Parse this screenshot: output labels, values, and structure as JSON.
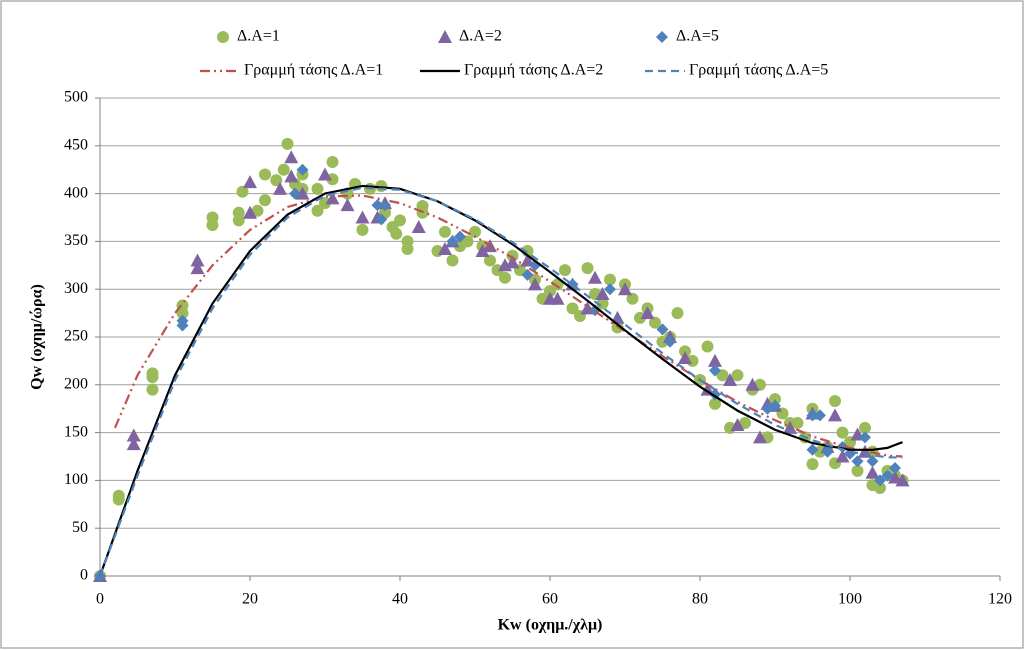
{
  "chart_data": {
    "type": "scatter",
    "x_label": "Kw (οχημ./χλμ)",
    "y_label": "Qw (οχημ/ώρα)",
    "xlim": [
      0,
      120
    ],
    "xticks": [
      0,
      20,
      40,
      60,
      80,
      100,
      120
    ],
    "ylim": [
      0,
      500
    ],
    "yticks": [
      0,
      50,
      100,
      150,
      200,
      250,
      300,
      350,
      400,
      450,
      500
    ],
    "grid": "horizontal",
    "legend": "top",
    "series": [
      {
        "name": "Δ.Α=1",
        "color": "#9bbb59",
        "marker": "circle",
        "x": [
          0,
          2.5,
          2.5,
          7,
          7,
          7,
          11,
          11,
          15,
          15,
          18.5,
          18.5,
          19,
          21,
          22,
          22,
          23.5,
          24.5,
          25,
          26,
          27,
          27,
          29,
          29,
          30,
          31,
          31,
          33,
          34,
          35,
          36,
          37.5,
          38,
          39,
          39.5,
          40,
          41,
          41,
          43,
          43,
          45,
          46,
          47,
          48,
          49,
          50,
          51,
          52,
          53,
          54,
          55,
          56,
          57,
          58,
          59,
          60,
          61,
          62,
          63,
          64,
          65,
          66,
          67,
          68,
          69,
          70,
          71,
          72,
          73,
          74,
          75,
          76,
          77,
          78,
          79,
          80,
          81,
          82,
          83,
          84,
          85,
          86,
          87,
          88,
          89,
          90,
          91,
          92,
          93,
          94,
          95,
          95,
          96,
          97,
          98,
          98,
          99,
          100,
          101,
          102,
          103,
          103,
          104,
          105,
          106,
          107
        ],
        "values": [
          0,
          80,
          84,
          195,
          212,
          208,
          275,
          283,
          367,
          375,
          372,
          380,
          402,
          382,
          393,
          420,
          414,
          425,
          452,
          410,
          420,
          405,
          382,
          405,
          390,
          415,
          433,
          400,
          410,
          362,
          405,
          408,
          380,
          365,
          358,
          372,
          342,
          350,
          380,
          387,
          340,
          360,
          330,
          345,
          350,
          360,
          345,
          330,
          320,
          312,
          335,
          320,
          340,
          310,
          290,
          298,
          305,
          320,
          280,
          272,
          322,
          295,
          285,
          310,
          260,
          305,
          290,
          270,
          280,
          265,
          245,
          250,
          275,
          235,
          225,
          205,
          240,
          180,
          210,
          155,
          210,
          160,
          195,
          200,
          145,
          185,
          170,
          160,
          160,
          145,
          117,
          175,
          130,
          135,
          183,
          118,
          150,
          140,
          110,
          155,
          130,
          95,
          92,
          110,
          105,
          100
        ]
      },
      {
        "name": "Δ.Α=2",
        "color": "#8064a2",
        "marker": "triangle",
        "x": [
          0,
          4.5,
          4.5,
          13,
          13,
          20,
          20,
          24,
          25.5,
          25.5,
          27,
          30,
          31,
          33,
          35,
          37,
          38,
          42.5,
          46,
          47,
          51,
          52,
          54,
          55,
          57,
          58,
          60,
          61,
          63,
          65,
          66,
          67,
          69,
          70,
          73,
          76,
          78,
          81,
          82,
          84,
          85,
          87,
          88,
          89,
          90,
          92,
          95,
          97,
          98,
          99,
          101,
          102,
          103,
          106,
          107
        ],
        "values": [
          0,
          138,
          147,
          322,
          330,
          380,
          412,
          405,
          438,
          418,
          400,
          420,
          395,
          388,
          375,
          375,
          390,
          365,
          342,
          350,
          340,
          345,
          325,
          328,
          330,
          305,
          290,
          290,
          305,
          280,
          312,
          295,
          270,
          300,
          275,
          250,
          228,
          195,
          225,
          205,
          158,
          200,
          145,
          180,
          178,
          155,
          170,
          135,
          168,
          125,
          148,
          130,
          108,
          103,
          100
        ]
      },
      {
        "name": "Δ.Α=5",
        "color": "#4f81bd",
        "marker": "diamond",
        "x": [
          0,
          11,
          11,
          26,
          27,
          37,
          37.5,
          38,
          47,
          48,
          57,
          58,
          63,
          66,
          68,
          75,
          76,
          82,
          82,
          89,
          90,
          95,
          95,
          96,
          97,
          99,
          100,
          101,
          102,
          103,
          104,
          105,
          106
        ],
        "values": [
          0,
          262,
          267,
          400,
          425,
          388,
          373,
          388,
          350,
          355,
          315,
          325,
          305,
          278,
          300,
          258,
          245,
          190,
          215,
          175,
          178,
          132,
          168,
          168,
          130,
          135,
          128,
          120,
          145,
          120,
          100,
          105,
          113
        ]
      },
      {
        "name": "Γραμμή τάσης Δ.Α=1",
        "color": "#c0504d",
        "line_style": "dash-dot-dot",
        "x": [
          2,
          5,
          10,
          15,
          20,
          25,
          30,
          35,
          40,
          45,
          50,
          55,
          60,
          65,
          70,
          75,
          80,
          85,
          90,
          95,
          100,
          105,
          107
        ],
        "values": [
          155,
          210,
          275,
          325,
          362,
          386,
          397,
          398,
          390,
          375,
          355,
          333,
          308,
          282,
          256,
          230,
          205,
          182,
          163,
          146,
          134,
          126,
          125
        ]
      },
      {
        "name": "Γραμμή τάσης Δ.Α=2",
        "color": "#000000",
        "line_style": "solid",
        "x": [
          0,
          5,
          10,
          15,
          20,
          25,
          30,
          35,
          40,
          45,
          50,
          55,
          60,
          65,
          70,
          75,
          80,
          85,
          90,
          95,
          100,
          103,
          105,
          107
        ],
        "values": [
          0,
          110,
          210,
          285,
          340,
          378,
          400,
          408,
          405,
          392,
          372,
          347,
          318,
          288,
          257,
          227,
          198,
          173,
          153,
          139,
          132,
          132,
          134,
          140
        ]
      },
      {
        "name": "Γραμμή τάσης Δ.Α=5",
        "color": "#4f81bd",
        "line_style": "dashed",
        "x": [
          0,
          5,
          10,
          15,
          20,
          25,
          30,
          35,
          40,
          45,
          50,
          55,
          60,
          65,
          70,
          75,
          80,
          85,
          90,
          95,
          100,
          105,
          107
        ],
        "values": [
          0,
          105,
          205,
          280,
          336,
          375,
          398,
          406,
          404,
          392,
          373,
          349,
          322,
          293,
          263,
          233,
          205,
          180,
          158,
          142,
          130,
          124,
          124
        ]
      }
    ]
  }
}
